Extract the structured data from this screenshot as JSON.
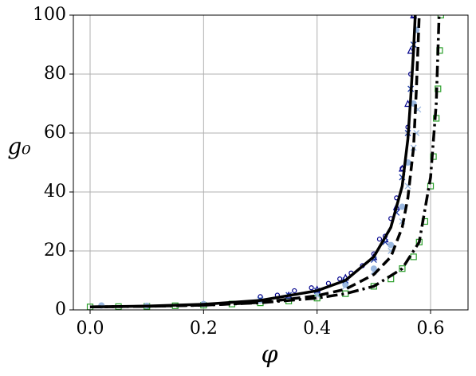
{
  "chart_data": {
    "type": "scatter",
    "xlabel": "φ",
    "ylabel": "g₀",
    "xlim": [
      -0.0295,
      0.666
    ],
    "ylim": [
      0,
      100
    ],
    "xticks": [
      {
        "value": 0,
        "label": "0.0"
      },
      0.2,
      0.4,
      0.6
    ],
    "yticks": [
      0,
      20,
      40,
      60,
      80,
      100
    ],
    "grid": true,
    "series": [
      {
        "kind": "marker",
        "marker": "square",
        "color": "#2ca02c",
        "x": [
          0.0,
          0.05,
          0.1,
          0.15,
          0.2,
          0.25,
          0.3,
          0.35,
          0.4,
          0.45,
          0.5,
          0.53,
          0.55,
          0.57,
          0.58,
          0.59,
          0.6,
          0.605,
          0.61,
          0.613,
          0.616,
          0.618
        ],
        "values": [
          1,
          1.1,
          1.2,
          1.4,
          1.6,
          2,
          2.4,
          3,
          4,
          5.5,
          8,
          10.5,
          14,
          18,
          23,
          30,
          42,
          52,
          65,
          75,
          88,
          100
        ]
      },
      {
        "kind": "marker",
        "marker": "circle-filled",
        "color": "#9ab8e0",
        "x": [
          0.02,
          0.1,
          0.2,
          0.3,
          0.4,
          0.45,
          0.5,
          0.53,
          0.55,
          0.56,
          0.57,
          0.575
        ],
        "values": [
          1.5,
          1.4,
          2,
          3.2,
          6,
          8.5,
          14,
          22,
          35,
          50,
          70,
          95
        ]
      },
      {
        "kind": "marker",
        "marker": "cross",
        "color": "#9ab8e0",
        "x": [
          0.4,
          0.45,
          0.5,
          0.53,
          0.55,
          0.56,
          0.57,
          0.575,
          0.578
        ],
        "values": [
          5,
          8,
          13,
          20,
          30,
          42,
          55,
          60,
          68
        ]
      },
      {
        "kind": "marker",
        "marker": "circle",
        "color": "#00008b",
        "x": [
          0.3,
          0.33,
          0.36,
          0.39,
          0.42,
          0.44,
          0.46,
          0.48,
          0.5,
          0.51,
          0.52,
          0.53,
          0.54,
          0.55,
          0.56,
          0.565,
          0.57
        ],
        "values": [
          4.5,
          5,
          6.5,
          7.5,
          9,
          10.5,
          12.5,
          15,
          19,
          24,
          25,
          31,
          38,
          48,
          62,
          80,
          100
        ]
      },
      {
        "kind": "marker",
        "marker": "triangle",
        "color": "#00008b",
        "x": [
          0.35,
          0.4,
          0.45,
          0.5,
          0.52,
          0.54,
          0.55,
          0.56,
          0.565,
          0.57
        ],
        "values": [
          5,
          7,
          11,
          18,
          24,
          35,
          48,
          70,
          88,
          100
        ]
      },
      {
        "kind": "marker",
        "marker": "cross",
        "color": "#1f3fa8",
        "x": [
          0.3,
          0.35,
          0.4,
          0.45,
          0.5,
          0.52,
          0.54,
          0.55,
          0.56,
          0.565,
          0.57
        ],
        "values": [
          3.5,
          5,
          6.5,
          10,
          17,
          23,
          33,
          45,
          60,
          75,
          90
        ]
      },
      {
        "kind": "line",
        "dash": "solid",
        "color": "#000000",
        "x": [
          0,
          0.1,
          0.2,
          0.3,
          0.4,
          0.45,
          0.5,
          0.53,
          0.55,
          0.56,
          0.565,
          0.57,
          0.573
        ],
        "values": [
          1,
          1.3,
          1.9,
          3.2,
          6.5,
          10,
          18,
          28,
          42,
          58,
          72,
          88,
          100
        ]
      },
      {
        "kind": "line",
        "dash": "dashed",
        "color": "#000000",
        "x": [
          0,
          0.1,
          0.2,
          0.3,
          0.4,
          0.45,
          0.5,
          0.53,
          0.55,
          0.56,
          0.57,
          0.575,
          0.58
        ],
        "values": [
          1,
          1.2,
          1.6,
          2.5,
          4.8,
          7,
          12,
          18,
          28,
          38,
          55,
          75,
          100
        ]
      },
      {
        "kind": "line",
        "dash": "dashdot",
        "color": "#000000",
        "x": [
          0,
          0.1,
          0.2,
          0.3,
          0.4,
          0.45,
          0.5,
          0.55,
          0.58,
          0.6,
          0.61,
          0.615
        ],
        "values": [
          1,
          1.2,
          1.6,
          2.4,
          4,
          5.5,
          8,
          14,
          23,
          45,
          70,
          100
        ]
      }
    ]
  }
}
